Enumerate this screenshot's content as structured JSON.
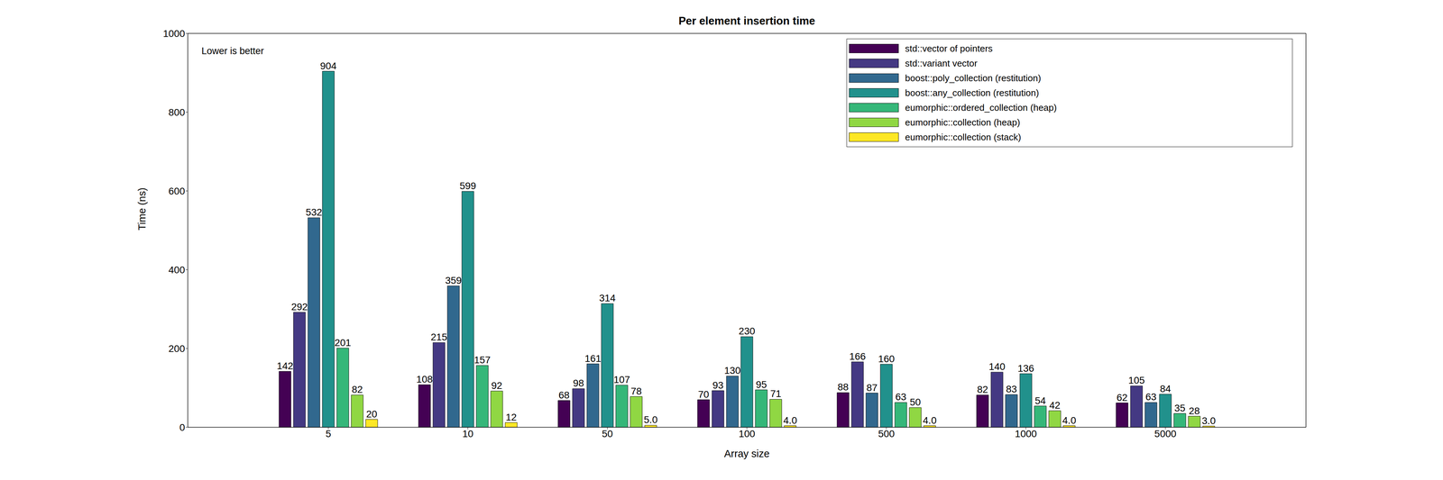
{
  "chart_data": {
    "type": "bar",
    "title": "Per element insertion time",
    "x_label": "Array size",
    "y_label": "Time (ns)",
    "annotations": [
      "Lower is better"
    ],
    "categories": [
      "5",
      "10",
      "50",
      "100",
      "500",
      "1000",
      "5000"
    ],
    "series": [
      {
        "name": "std::vector of pointers",
        "color": "#440154",
        "values": [
          142,
          108,
          68,
          70,
          88,
          82,
          62
        ]
      },
      {
        "name": "std::variant vector",
        "color": "#443983",
        "values": [
          292,
          215,
          98,
          93,
          166,
          140,
          105
        ]
      },
      {
        "name": "boost::poly_collection (restitution)",
        "color": "#31688e",
        "values": [
          532,
          359,
          161,
          130,
          87,
          83,
          63
        ]
      },
      {
        "name": "boost::any_collection (restitution)",
        "color": "#21918c",
        "values": [
          904,
          599,
          314,
          230,
          160,
          136,
          84
        ]
      },
      {
        "name": "eumorphic::ordered_collection (heap)",
        "color": "#35b779",
        "values": [
          201,
          157,
          107,
          95,
          63,
          54,
          35
        ]
      },
      {
        "name": "eumorphic::collection (heap)",
        "color": "#90d743",
        "values": [
          82,
          92,
          78,
          71,
          50,
          42,
          28
        ]
      },
      {
        "name": "eumorphic::collection (stack)",
        "color": "#fde725",
        "values": [
          20,
          12,
          5,
          4,
          4,
          4,
          3
        ],
        "value_labels": [
          "20",
          "12",
          "5.0",
          "4.0",
          "4.0",
          "4.0",
          "3.0"
        ]
      }
    ],
    "ylim": [
      0,
      1000
    ],
    "yticks": [
      0,
      200,
      400,
      600,
      800,
      1000
    ],
    "grid": false,
    "legend": "upper right",
    "data_labels": true
  }
}
